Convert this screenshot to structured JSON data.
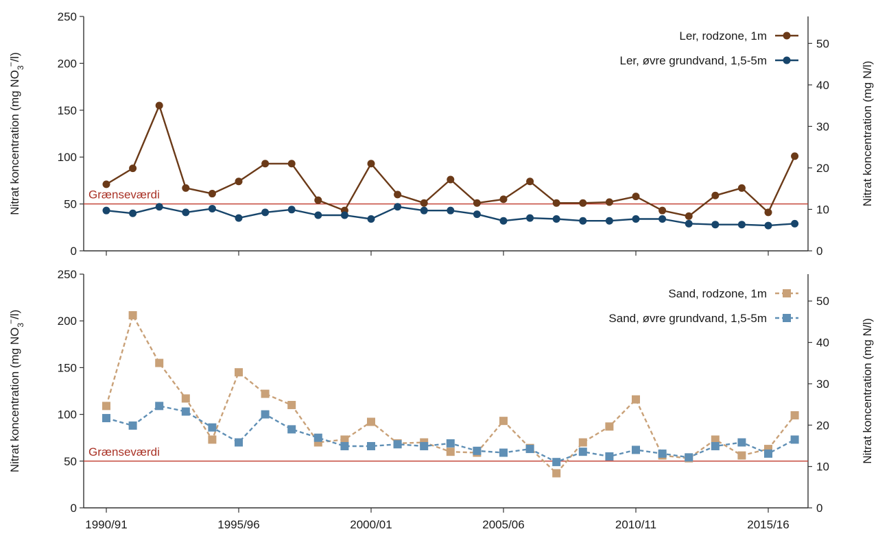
{
  "chart_data": [
    {
      "type": "line",
      "panel": "top",
      "x_tick_labels": [
        "1990/91",
        "1995/96",
        "2000/01",
        "2005/06",
        "2010/11",
        "2015/16"
      ],
      "ylabel_left": {
        "pre": "Nitrat koncentration (mg NO",
        "sub": "3",
        "sup": "−",
        "post": "/l)"
      },
      "ylabel_right": "Nitrat koncentration (mg N/l)",
      "ylim_left": [
        0,
        250
      ],
      "yticks_left": [
        "0",
        "50",
        "100",
        "150",
        "200",
        "250"
      ],
      "ylim_right": [
        0,
        56.5
      ],
      "yticks_right": [
        "0",
        "10",
        "20",
        "30",
        "40",
        "50"
      ],
      "limit_value": 50,
      "limit_label": "Grænseværdi",
      "limit_color": "#c0392b",
      "legend_position": "top-right",
      "series": [
        {
          "name": "Ler, rodzone, 1m",
          "color": "#6b3a18",
          "marker": "circle",
          "dashed": false,
          "values": [
            71,
            88,
            155,
            67,
            61,
            74,
            93,
            93,
            54,
            43,
            93,
            60,
            51,
            76,
            51,
            55,
            74,
            51,
            51,
            52,
            58,
            43,
            37,
            59,
            67,
            41,
            101
          ]
        },
        {
          "name": "Ler, øvre grundvand, 1,5-5m",
          "color": "#17456b",
          "marker": "circle",
          "dashed": false,
          "values": [
            43,
            40,
            47,
            41,
            45,
            35,
            41,
            44,
            38,
            38,
            34,
            47,
            43,
            43,
            39,
            32,
            35,
            34,
            32,
            32,
            34,
            34,
            29,
            28,
            28,
            27,
            29
          ]
        }
      ]
    },
    {
      "type": "line",
      "panel": "bottom",
      "x_tick_labels": [
        "1990/91",
        "1995/96",
        "2000/01",
        "2005/06",
        "2010/11",
        "2015/16"
      ],
      "ylabel_left": {
        "pre": "Nitrat koncentration (mg NO",
        "sub": "3",
        "sup": "−",
        "post": "/l)"
      },
      "ylabel_right": "Nitrat koncentration (mg N/l)",
      "ylim_left": [
        0,
        250
      ],
      "yticks_left": [
        "0",
        "50",
        "100",
        "150",
        "200",
        "250"
      ],
      "ylim_right": [
        0,
        56.5
      ],
      "yticks_right": [
        "0",
        "10",
        "20",
        "30",
        "40",
        "50"
      ],
      "limit_value": 50,
      "limit_label": "Grænseværdi",
      "limit_color": "#c0392b",
      "legend_position": "top-right",
      "series": [
        {
          "name": "Sand, rodzone, 1m",
          "color": "#c9a178",
          "marker": "square",
          "dashed": true,
          "values": [
            109,
            206,
            155,
            117,
            73,
            145,
            122,
            110,
            70,
            73,
            92,
            69,
            70,
            60,
            59,
            93,
            64,
            37,
            70,
            87,
            116,
            56,
            53,
            73,
            56,
            63,
            99
          ]
        },
        {
          "name": "Sand, øvre grundvand, 1,5-5m",
          "color": "#5f8fb5",
          "marker": "square",
          "dashed": true,
          "values": [
            96,
            88,
            109,
            103,
            86,
            70,
            100,
            84,
            75,
            66,
            66,
            68,
            66,
            69,
            61,
            59,
            63,
            49,
            60,
            55,
            62,
            58,
            54,
            66,
            70,
            58,
            73
          ]
        }
      ]
    }
  ]
}
